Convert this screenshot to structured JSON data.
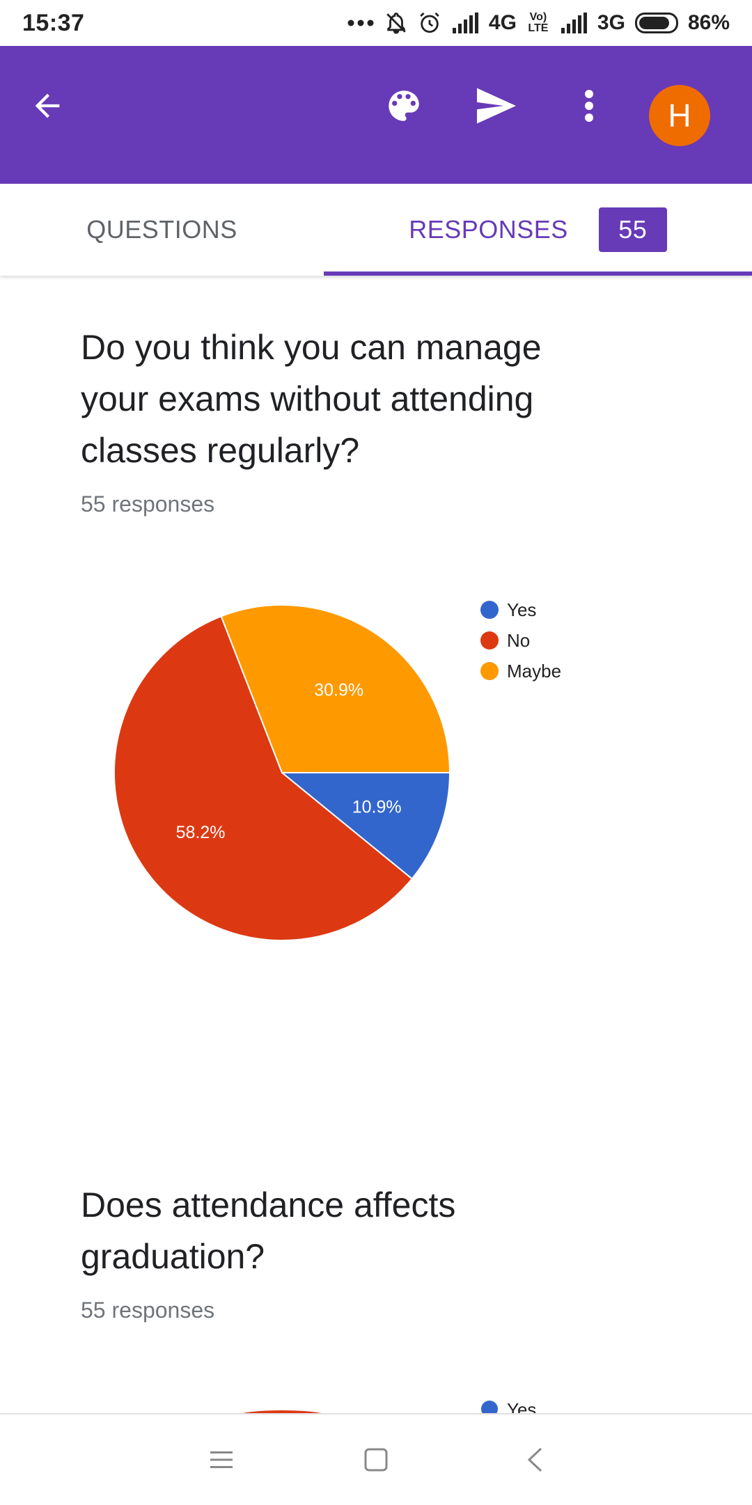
{
  "status_bar": {
    "time": "15:37",
    "network_1": "4G",
    "volte": "Vo) LTE",
    "network_2": "3G",
    "battery": "86%",
    "battery_level": 0.86
  },
  "app_bar": {
    "avatar_initial": "H",
    "accent_color": "#673ab7",
    "avatar_color": "#ef6c00"
  },
  "tabs": {
    "questions_label": "QUESTIONS",
    "responses_label": "RESPONSES",
    "responses_count": "55",
    "active": "responses"
  },
  "questions": [
    {
      "title": "Do you think you can manage your exams without attending classes regularly?",
      "responses": "55 responses"
    },
    {
      "title": "Does attendance affects graduation?",
      "responses": "55 responses"
    }
  ],
  "chart_data": [
    {
      "type": "pie",
      "legend_position": "right",
      "slices": [
        {
          "label": "Yes",
          "value": 10.9,
          "display": "10.9%",
          "color": "#3366cc"
        },
        {
          "label": "No",
          "value": 58.2,
          "display": "58.2%",
          "color": "#dc3912"
        },
        {
          "label": "Maybe",
          "value": 30.9,
          "display": "30.9%",
          "color": "#ff9900"
        }
      ]
    }
  ],
  "chart2_data": {
    "legend_first": "Yes",
    "colors": [
      "#3366cc",
      "#dc3912"
    ]
  }
}
